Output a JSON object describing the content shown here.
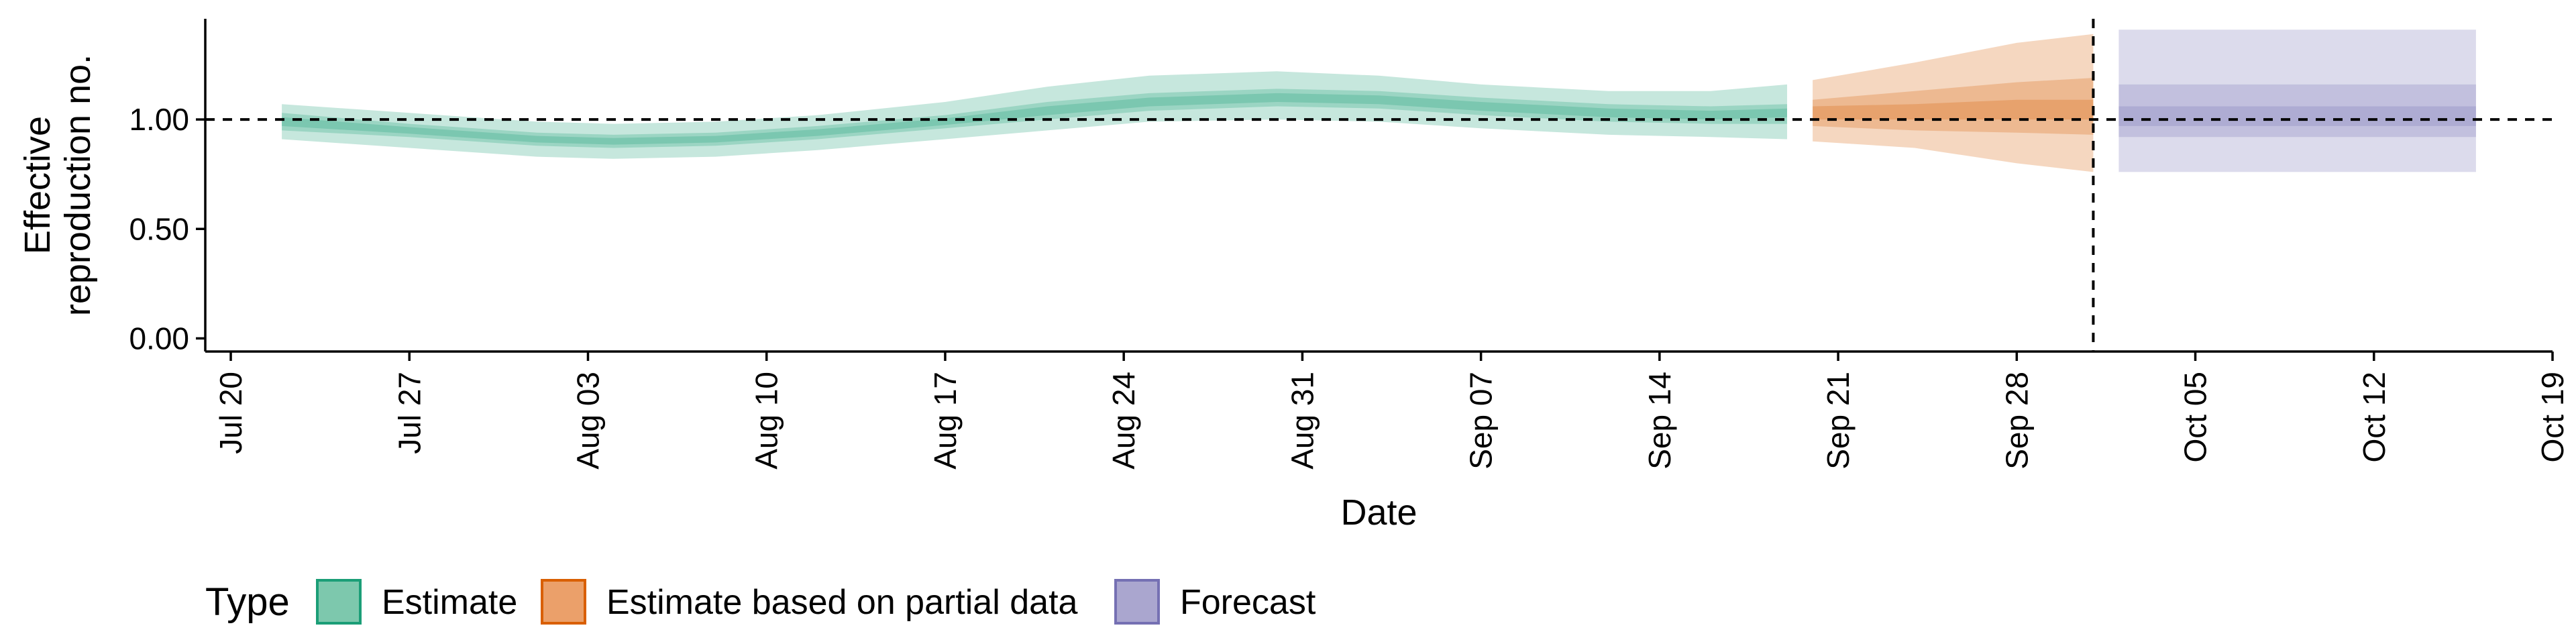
{
  "chart_data": {
    "type": "area",
    "xlabel": "Date",
    "ylabel_lines": [
      "Effective",
      "reproduction no."
    ],
    "y_ticks": [
      "0.00",
      "0.50",
      "1.00"
    ],
    "y_tick_values": [
      0,
      0.5,
      1.0
    ],
    "ylim": [
      -0.06,
      1.46
    ],
    "xlim": [
      "2020-07-19",
      "2020-10-19"
    ],
    "x_ticks": [
      "Jul 20",
      "Jul 27",
      "Aug 03",
      "Aug 10",
      "Aug 17",
      "Aug 24",
      "Aug 31",
      "Sep 07",
      "Sep 14",
      "Sep 21",
      "Sep 28",
      "Oct 05",
      "Oct 12",
      "Oct 19"
    ],
    "x_tick_dates": [
      "2020-07-20",
      "2020-07-27",
      "2020-08-03",
      "2020-08-10",
      "2020-08-17",
      "2020-08-24",
      "2020-08-31",
      "2020-09-07",
      "2020-09-14",
      "2020-09-21",
      "2020-09-28",
      "2020-10-05",
      "2020-10-12",
      "2020-10-19"
    ],
    "reference_hline": 1.0,
    "reference_vline": "2020-10-01",
    "legend": {
      "title": "Type",
      "position": "bottom-left",
      "entries": [
        {
          "label": "Estimate",
          "fill": "#7dc8ad",
          "stroke": "#1b9e77"
        },
        {
          "label": "Estimate based on partial data",
          "fill": "#eba06a",
          "stroke": "#d95f02"
        },
        {
          "label": "Forecast",
          "fill": "#aaa6cf",
          "stroke": "#7570b3"
        }
      ]
    },
    "series": [
      {
        "name": "Estimate",
        "color": "#1b9e77",
        "points": [
          {
            "date": "2020-07-22",
            "median": 0.99,
            "l20": 0.97,
            "u20": 1.01,
            "l50": 0.95,
            "u50": 1.03,
            "l90": 0.91,
            "u90": 1.07
          },
          {
            "date": "2020-07-27",
            "median": 0.95,
            "l20": 0.935,
            "u20": 0.965,
            "l50": 0.92,
            "u50": 0.98,
            "l90": 0.87,
            "u90": 1.03
          },
          {
            "date": "2020-08-01",
            "median": 0.91,
            "l20": 0.895,
            "u20": 0.925,
            "l50": 0.88,
            "u50": 0.94,
            "l90": 0.83,
            "u90": 0.99
          },
          {
            "date": "2020-08-04",
            "median": 0.9,
            "l20": 0.885,
            "u20": 0.915,
            "l50": 0.87,
            "u50": 0.93,
            "l90": 0.82,
            "u90": 0.98
          },
          {
            "date": "2020-08-08",
            "median": 0.91,
            "l20": 0.895,
            "u20": 0.925,
            "l50": 0.88,
            "u50": 0.94,
            "l90": 0.83,
            "u90": 0.99
          },
          {
            "date": "2020-08-12",
            "median": 0.94,
            "l20": 0.925,
            "u20": 0.955,
            "l50": 0.91,
            "u50": 0.97,
            "l90": 0.86,
            "u90": 1.02
          },
          {
            "date": "2020-08-17",
            "median": 0.99,
            "l20": 0.975,
            "u20": 1.005,
            "l50": 0.96,
            "u50": 1.02,
            "l90": 0.91,
            "u90": 1.08
          },
          {
            "date": "2020-08-21",
            "median": 1.04,
            "l20": 1.02,
            "u20": 1.06,
            "l50": 1.0,
            "u50": 1.08,
            "l90": 0.95,
            "u90": 1.15
          },
          {
            "date": "2020-08-25",
            "median": 1.08,
            "l20": 1.06,
            "u20": 1.1,
            "l50": 1.04,
            "u50": 1.12,
            "l90": 0.99,
            "u90": 1.2
          },
          {
            "date": "2020-08-30",
            "median": 1.1,
            "l20": 1.08,
            "u20": 1.12,
            "l50": 1.06,
            "u50": 1.14,
            "l90": 1.0,
            "u90": 1.22
          },
          {
            "date": "2020-09-03",
            "median": 1.09,
            "l20": 1.07,
            "u20": 1.11,
            "l50": 1.05,
            "u50": 1.13,
            "l90": 0.99,
            "u90": 1.2
          },
          {
            "date": "2020-09-07",
            "median": 1.06,
            "l20": 1.04,
            "u20": 1.08,
            "l50": 1.02,
            "u50": 1.1,
            "l90": 0.96,
            "u90": 1.16
          },
          {
            "date": "2020-09-12",
            "median": 1.03,
            "l20": 1.01,
            "u20": 1.05,
            "l50": 0.99,
            "u50": 1.07,
            "l90": 0.93,
            "u90": 1.13
          },
          {
            "date": "2020-09-16",
            "median": 1.02,
            "l20": 1.0,
            "u20": 1.04,
            "l50": 0.98,
            "u50": 1.06,
            "l90": 0.92,
            "u90": 1.13
          },
          {
            "date": "2020-09-19",
            "median": 1.03,
            "l20": 1.01,
            "u20": 1.05,
            "l50": 0.98,
            "u50": 1.07,
            "l90": 0.91,
            "u90": 1.16
          }
        ]
      },
      {
        "name": "Estimate based on partial data",
        "color": "#d95f02",
        "points": [
          {
            "date": "2020-09-20",
            "median": 1.03,
            "l20": 1.0,
            "u20": 1.06,
            "l50": 0.97,
            "u50": 1.09,
            "l90": 0.9,
            "u90": 1.18
          },
          {
            "date": "2020-09-24",
            "median": 1.04,
            "l20": 1.0,
            "u20": 1.07,
            "l50": 0.95,
            "u50": 1.13,
            "l90": 0.87,
            "u90": 1.26
          },
          {
            "date": "2020-09-28",
            "median": 1.05,
            "l20": 1.0,
            "u20": 1.09,
            "l50": 0.94,
            "u50": 1.17,
            "l90": 0.8,
            "u90": 1.35
          },
          {
            "date": "2020-10-01",
            "median": 1.05,
            "l20": 1.0,
            "u20": 1.09,
            "l50": 0.93,
            "u50": 1.19,
            "l90": 0.76,
            "u90": 1.39
          }
        ]
      },
      {
        "name": "Forecast",
        "color": "#7570b3",
        "points": [
          {
            "date": "2020-10-02",
            "median": 1.02,
            "l20": 0.97,
            "u20": 1.06,
            "l50": 0.92,
            "u50": 1.16,
            "l90": 0.76,
            "u90": 1.41
          },
          {
            "date": "2020-10-16",
            "median": 1.02,
            "l20": 0.97,
            "u20": 1.06,
            "l50": 0.92,
            "u50": 1.16,
            "l90": 0.76,
            "u90": 1.41
          }
        ]
      }
    ]
  }
}
